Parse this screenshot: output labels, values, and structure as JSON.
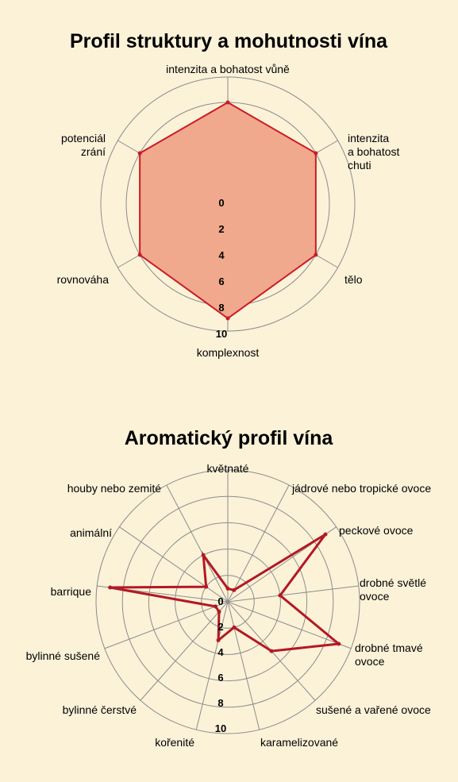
{
  "chart_data": [
    {
      "type": "radar",
      "title": "Profil struktury a mohutnosti vína",
      "categories": [
        "intenzita a bohatost vůně",
        "intenzita\na bohatost\nchuti",
        "tělo",
        "komplexnost",
        "rovnováha",
        "potenciál\nzrání"
      ],
      "values": [
        8,
        8,
        8,
        9,
        8,
        8
      ],
      "ticks": [
        "0",
        "2",
        "4",
        "6",
        "8",
        "10"
      ],
      "rlim": [
        0,
        10
      ],
      "fill": true,
      "colors": {
        "line": "#cc1a26",
        "fill": "#f0a98c",
        "grid": "#8c8c8c"
      }
    },
    {
      "type": "radar",
      "title": "Aromatický profil vína",
      "categories": [
        "květnaté",
        "jádrové nebo tropické ovoce",
        "peckové ovoce",
        "drobné světlé\novoce",
        "drobné tmavé\novoce",
        "sušené a vařené ovoce",
        "karamelizované",
        "kořenité",
        "bylinné čerstvé",
        "bylinné sušené",
        "barrique",
        "animální",
        "houby nebo zemité"
      ],
      "values": [
        1,
        1,
        9,
        4,
        9,
        5,
        2,
        3,
        1,
        1,
        9,
        2,
        4
      ],
      "ticks": [
        "0",
        "2",
        "4",
        "6",
        "8",
        "10"
      ],
      "rlim": [
        0,
        10
      ],
      "fill": false,
      "colors": {
        "line": "#b31824",
        "grid": "#8c8c8c"
      }
    }
  ]
}
